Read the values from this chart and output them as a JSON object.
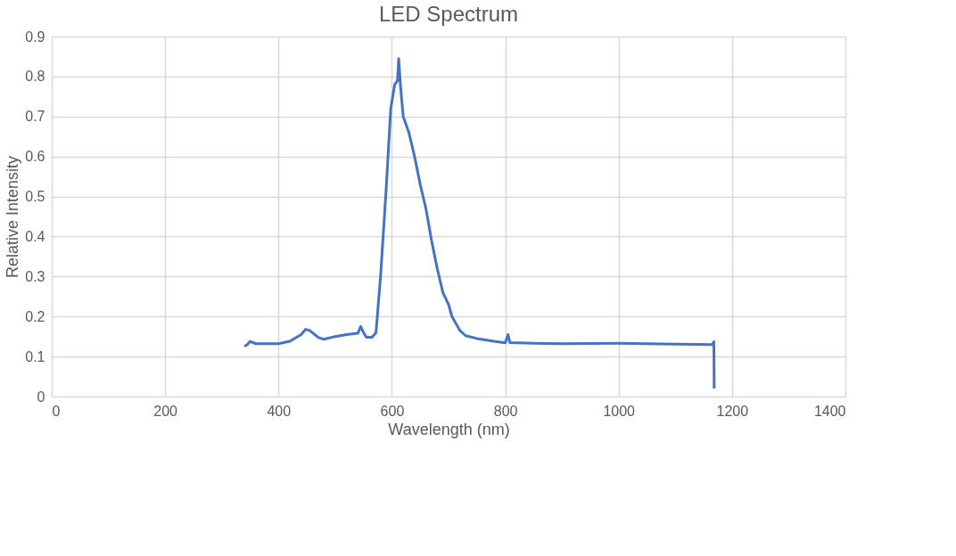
{
  "chart_data": {
    "type": "line",
    "title": "LED Spectrum",
    "xlabel": "Wavelength (nm)",
    "ylabel": "Relative Intensity",
    "xlim": [
      0,
      1400
    ],
    "xticks": [
      0,
      200,
      400,
      600,
      800,
      1000,
      1200,
      1400
    ],
    "ylim": [
      0,
      0.9
    ],
    "yticks": [
      0,
      0.1,
      0.2,
      0.3,
      0.4,
      0.5,
      0.6,
      0.7,
      0.8,
      0.9
    ],
    "grid": true,
    "legend": false,
    "marker": "none",
    "line_style": "solid",
    "series": [
      {
        "color": "#4472c4",
        "x": [
          340,
          345,
          350,
          360,
          400,
          420,
          440,
          448,
          455,
          470,
          480,
          500,
          520,
          540,
          545,
          550,
          555,
          565,
          572,
          580,
          590,
          598,
          605,
          610,
          612,
          615,
          620,
          630,
          640,
          650,
          660,
          670,
          680,
          690,
          700,
          706,
          720,
          730,
          750,
          780,
          800,
          805,
          808,
          850,
          900,
          1000,
          1100,
          1165,
          1168,
          1168.5
        ],
        "values": [
          0.125,
          0.13,
          0.138,
          0.132,
          0.132,
          0.138,
          0.155,
          0.168,
          0.165,
          0.148,
          0.143,
          0.15,
          0.155,
          0.158,
          0.175,
          0.16,
          0.148,
          0.148,
          0.16,
          0.3,
          0.52,
          0.72,
          0.78,
          0.79,
          0.845,
          0.78,
          0.7,
          0.66,
          0.6,
          0.53,
          0.47,
          0.39,
          0.32,
          0.26,
          0.23,
          0.2,
          0.165,
          0.152,
          0.145,
          0.138,
          0.134,
          0.155,
          0.135,
          0.133,
          0.132,
          0.133,
          0.131,
          0.13,
          0.137,
          0.02
        ]
      }
    ]
  }
}
